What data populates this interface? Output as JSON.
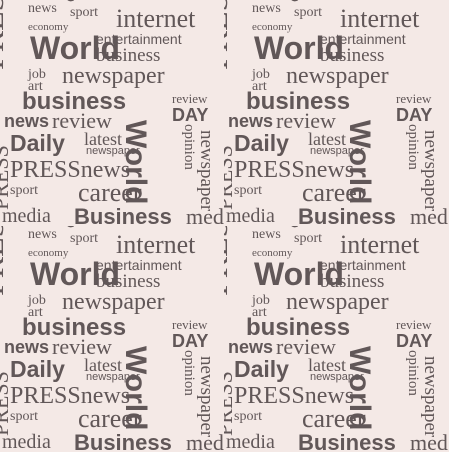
{
  "words": {
    "news": "news",
    "sport": "sport",
    "internet": "internet",
    "economy": "economy",
    "world": "World",
    "entertainment": "entertainment",
    "business": "business",
    "business_caps": "Business",
    "media": "media",
    "press": "PRESS",
    "press_news": "PRESSnews",
    "job": "job",
    "art": "art",
    "newspaper": "newspaper",
    "review": "review",
    "day": "DAY",
    "news_cap": "News",
    "daily": "Daily",
    "latest": "latest",
    "career": "career",
    "opinion": "opinion",
    "crisis": "crisis",
    "world_vertical": "World"
  },
  "colors": {
    "background": "#f4e9e6",
    "text": "#615758"
  }
}
